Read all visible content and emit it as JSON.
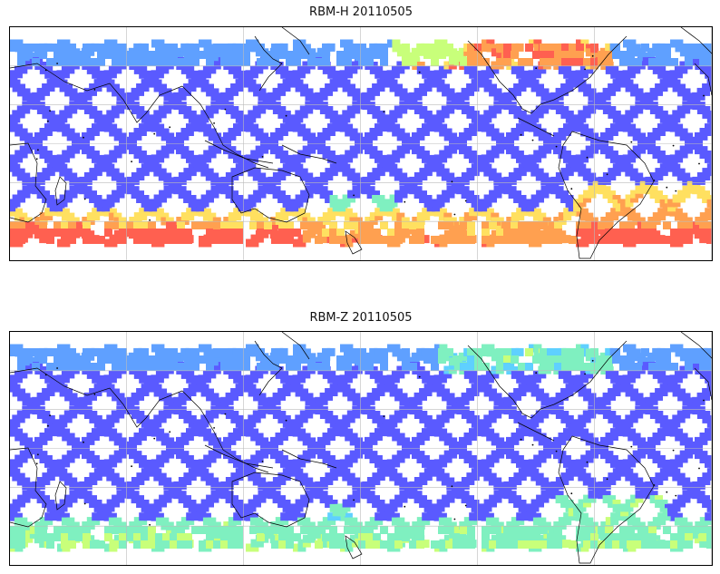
{
  "panels": [
    {
      "id": "top",
      "title": "RBM-H 20110505",
      "variant": "H"
    },
    {
      "id": "bottom",
      "title": "RBM-Z 20110505",
      "variant": "Z"
    }
  ],
  "colormap": {
    "name": "jet",
    "stops": [
      "#5a5aff",
      "#5fa0ff",
      "#5fd0ff",
      "#7ff0c0",
      "#c8ff7a",
      "#ffe060",
      "#ffa050",
      "#ff6050"
    ]
  },
  "grid": {
    "lon_lines": 6,
    "lat_lines": 5,
    "color": "#bbbbbb"
  },
  "coastline_color": "#000000"
}
